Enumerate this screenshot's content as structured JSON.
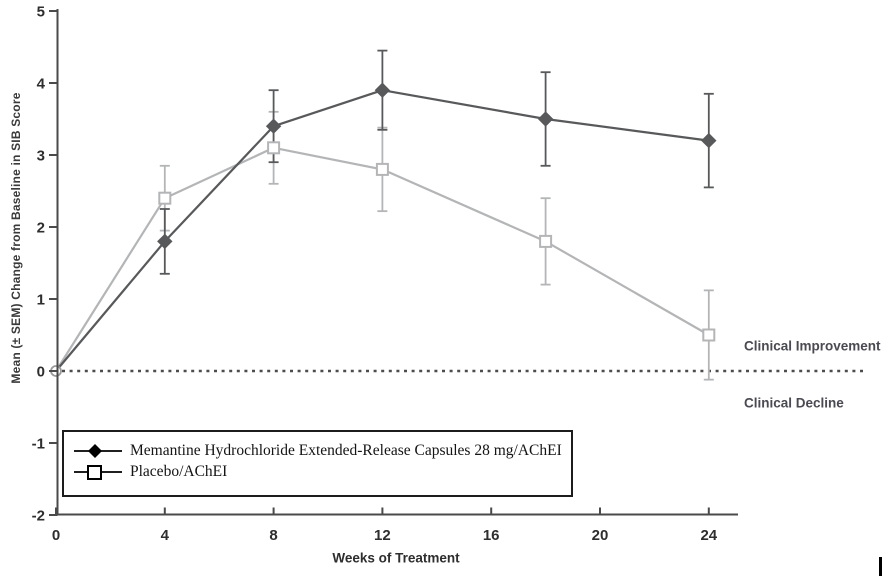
{
  "chart_data": {
    "type": "line",
    "xlabel": "Weeks of Treatment",
    "ylabel": "Mean (± SEM) Change from Baseline in SIB Score",
    "xlim": [
      0,
      25
    ],
    "ylim": [
      -2,
      5
    ],
    "xticks": [
      0,
      4,
      8,
      12,
      16,
      20,
      24
    ],
    "yticks": [
      5,
      4,
      3,
      2,
      1,
      0,
      -1,
      -2
    ],
    "grid": false,
    "x": [
      0,
      4,
      8,
      12,
      18,
      24
    ],
    "series": [
      {
        "name": "Memantine Hydrochloride Extended-Release Capsules 28 mg/AChEI",
        "marker": "filled-diamond",
        "color": "#58595b",
        "values": [
          0,
          1.8,
          3.4,
          3.9,
          3.5,
          3.2
        ],
        "sem": [
          0,
          0.45,
          0.5,
          0.55,
          0.65,
          0.65
        ]
      },
      {
        "name": "Placebo/AChEI",
        "marker": "open-square",
        "color": "#b4b5b7",
        "values": [
          0,
          2.4,
          3.1,
          2.8,
          1.8,
          0.5
        ],
        "sem": [
          0,
          0.45,
          0.5,
          0.58,
          0.6,
          0.62
        ]
      }
    ],
    "baseline_value": 0,
    "baseline_style": "dashed",
    "origin_marker": "open-circle",
    "annotations": [
      {
        "text": "Clinical Improvement",
        "position": "above-baseline-right"
      },
      {
        "text": "Clinical Decline",
        "position": "below-baseline-right"
      }
    ],
    "legend_position": "boxed-bottom-left"
  },
  "colors": {
    "axis": "#4a4a4a",
    "tick_label": "#2e2e2e",
    "baseline_dash": "#4d4d4d",
    "origin_marker_stroke": "#9a9a9a",
    "legend_icon": "#000000"
  }
}
